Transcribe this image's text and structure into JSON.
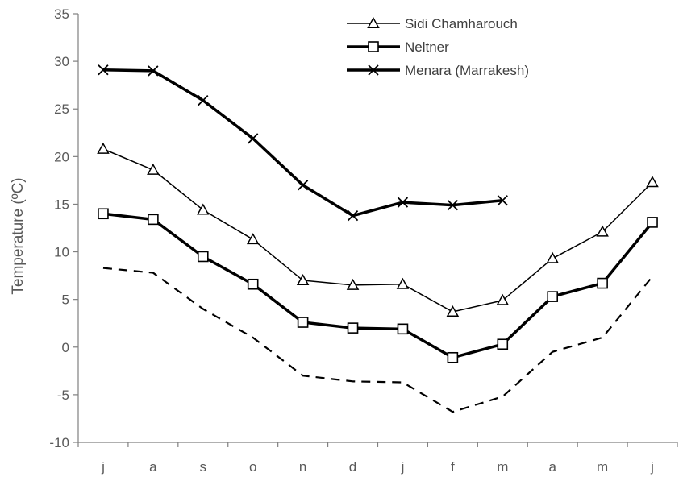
{
  "chart_data": {
    "type": "line",
    "title": "",
    "xlabel": "",
    "ylabel": "Temperature (ºC)",
    "ylim": [
      -10,
      35
    ],
    "yticks": [
      "35",
      "30",
      "25",
      "20",
      "15",
      "10",
      "5",
      "0",
      "-5",
      "-10"
    ],
    "categories": [
      "j",
      "a",
      "s",
      "o",
      "n",
      "d",
      "j",
      "f",
      "m",
      "a",
      "m",
      "j"
    ],
    "legend_position": "top-right",
    "grid": false,
    "series": [
      {
        "name": "Sidi Chamharouch",
        "marker": "triangle",
        "style": "thin",
        "values": [
          20.8,
          18.6,
          14.4,
          11.3,
          7.0,
          6.5,
          6.6,
          3.7,
          4.9,
          9.3,
          12.1,
          17.3
        ]
      },
      {
        "name": "Neltner",
        "marker": "square",
        "style": "thick",
        "values": [
          14.0,
          13.4,
          9.5,
          6.6,
          2.6,
          2.0,
          1.9,
          -1.1,
          0.3,
          5.3,
          6.7,
          13.1
        ]
      },
      {
        "name": "Menara (Marrakesh)",
        "marker": "x",
        "style": "thick",
        "values": [
          29.1,
          29.0,
          25.9,
          21.9,
          17.0,
          13.8,
          15.2,
          14.9,
          15.4,
          null,
          null,
          null
        ]
      },
      {
        "marker": "none",
        "style": "dashed",
        "values": [
          8.3,
          7.8,
          4.0,
          1.0,
          -3.0,
          -3.6,
          -3.7,
          -6.8,
          -5.2,
          -0.5,
          1.0,
          7.4
        ]
      }
    ]
  }
}
